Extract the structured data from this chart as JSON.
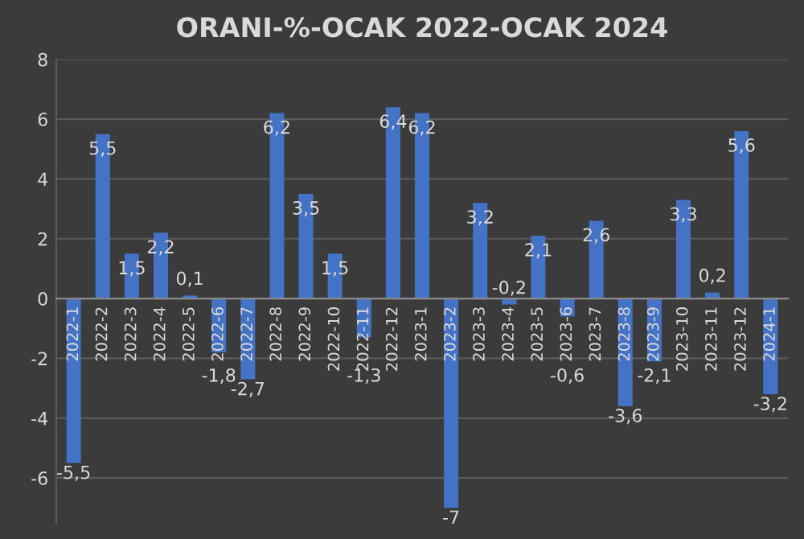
{
  "chart_data": {
    "type": "bar",
    "title": "ORANI-%-OCAK 2022-OCAK 2024",
    "categories": [
      "2022-1",
      "2022-2",
      "2022-3",
      "2022-4",
      "2022-5",
      "2022-6",
      "2022-7",
      "2022-8",
      "2022-9",
      "2022-10",
      "2022-11",
      "2022-12",
      "2023-1",
      "2023-2",
      "2023-3",
      "2023-4",
      "2023-5",
      "2023-6",
      "2023-7",
      "2023-8",
      "2023-9",
      "2023-10",
      "2023-11",
      "2023-12",
      "2024-1"
    ],
    "values": [
      -5.5,
      5.5,
      1.5,
      2.2,
      0.1,
      -1.8,
      -2.7,
      6.2,
      3.5,
      1.5,
      -1.3,
      6.4,
      6.2,
      -7,
      3.2,
      -0.2,
      2.1,
      -0.6,
      2.6,
      -3.6,
      -2.1,
      3.3,
      0.2,
      5.6,
      -3.2
    ],
    "value_labels": [
      "-5,5",
      "5,5",
      "1,5",
      "2,2",
      "0,1",
      "-1,8",
      "-2,7",
      "6,2",
      "3,5",
      "1,5",
      "-1,3",
      "6,4",
      "6,2",
      "-7",
      "3,2",
      "-0,2",
      "2,1",
      "-0,6",
      "2,6",
      "-3,6",
      "-2,1",
      "3,3",
      "0,2",
      "5,6",
      "-3,2"
    ],
    "color": "#4472c4",
    "ylim": [
      -7.5,
      8
    ],
    "yticks": [
      -6,
      -4,
      -2,
      0,
      2,
      4,
      6,
      8
    ],
    "grid": "y"
  }
}
